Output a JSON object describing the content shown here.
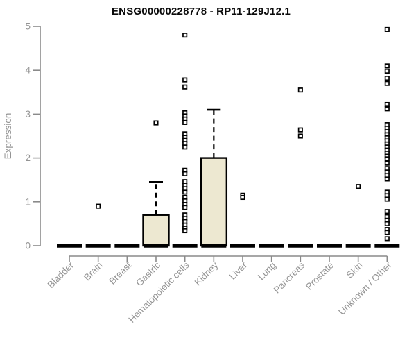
{
  "chart_data": {
    "type": "boxplot",
    "title": "ENSG00000228778 - RP11-129J12.1",
    "ylabel": "Expression",
    "xlabel": "",
    "ylim": [
      0,
      5
    ],
    "yticks": [
      0,
      1,
      2,
      3,
      4,
      5
    ],
    "grid": false,
    "legend": "none",
    "colors": {
      "box_fill": "#ede8d1",
      "box_stroke": "#000000",
      "median": "#000000",
      "outlier_stroke": "#000000",
      "outlier_fill": "#ffffff",
      "axis": "#8a8a8a",
      "axis_text": "#949494",
      "title_text": "#0a0a0a"
    },
    "categories": [
      "Bladder",
      "Brain",
      "Breast",
      "Gastric",
      "Hematopoietic cells",
      "Kidney",
      "Liver",
      "Lung",
      "Pancreas",
      "Prostate",
      "Skin",
      "Unknown / Other"
    ],
    "boxes": [
      {
        "category": "Bladder",
        "q1": 0,
        "median": 0,
        "q3": 0,
        "whisker_low": 0,
        "whisker_high": 0,
        "outliers": []
      },
      {
        "category": "Brain",
        "q1": 0,
        "median": 0,
        "q3": 0,
        "whisker_low": 0,
        "whisker_high": 0,
        "outliers": [
          0.9
        ]
      },
      {
        "category": "Breast",
        "q1": 0,
        "median": 0,
        "q3": 0,
        "whisker_low": 0,
        "whisker_high": 0,
        "outliers": []
      },
      {
        "category": "Gastric",
        "q1": 0,
        "median": 0,
        "q3": 0.7,
        "whisker_low": 0,
        "whisker_high": 1.45,
        "outliers": [
          2.8
        ]
      },
      {
        "category": "Hematopoietic cells",
        "q1": 0,
        "median": 0,
        "q3": 0,
        "whisker_low": 0,
        "whisker_high": 0,
        "outliers": [
          4.8,
          3.78,
          3.62,
          3.03,
          2.96,
          2.89,
          2.81,
          2.55,
          2.47,
          2.4,
          2.33,
          2.25,
          1.72,
          1.64,
          1.46,
          1.38,
          1.3,
          1.22,
          1.1,
          1.02,
          0.94,
          0.87,
          0.7,
          0.62,
          0.55,
          0.47,
          0.4,
          0.34
        ]
      },
      {
        "category": "Kidney",
        "q1": 0,
        "median": 0,
        "q3": 2.0,
        "whisker_low": 0,
        "whisker_high": 3.1,
        "outliers": []
      },
      {
        "category": "Liver",
        "q1": 0,
        "median": 0,
        "q3": 0,
        "whisker_low": 0,
        "whisker_high": 0,
        "outliers": [
          1.15,
          1.1
        ]
      },
      {
        "category": "Lung",
        "q1": 0,
        "median": 0,
        "q3": 0,
        "whisker_low": 0,
        "whisker_high": 0,
        "outliers": []
      },
      {
        "category": "Pancreas",
        "q1": 0,
        "median": 0,
        "q3": 0,
        "whisker_low": 0,
        "whisker_high": 0,
        "outliers": [
          3.55,
          2.64,
          2.5
        ]
      },
      {
        "category": "Prostate",
        "q1": 0,
        "median": 0,
        "q3": 0,
        "whisker_low": 0,
        "whisker_high": 0,
        "outliers": []
      },
      {
        "category": "Skin",
        "q1": 0,
        "median": 0,
        "q3": 0,
        "whisker_low": 0,
        "whisker_high": 0,
        "outliers": [
          1.35
        ]
      },
      {
        "category": "Unknown / Other",
        "q1": 0,
        "median": 0,
        "q3": 0,
        "whisker_low": 0,
        "whisker_high": 0,
        "outliers": [
          4.93,
          4.1,
          3.98,
          3.82,
          3.7,
          3.22,
          3.12,
          2.76,
          2.68,
          2.6,
          2.53,
          2.46,
          2.39,
          2.32,
          2.25,
          2.18,
          2.11,
          2.04,
          1.98,
          1.88,
          1.76,
          1.68,
          1.6,
          1.52,
          1.22,
          1.14,
          1.06,
          0.78,
          0.66,
          0.58,
          0.5,
          0.37,
          0.3,
          0.16
        ]
      }
    ]
  }
}
